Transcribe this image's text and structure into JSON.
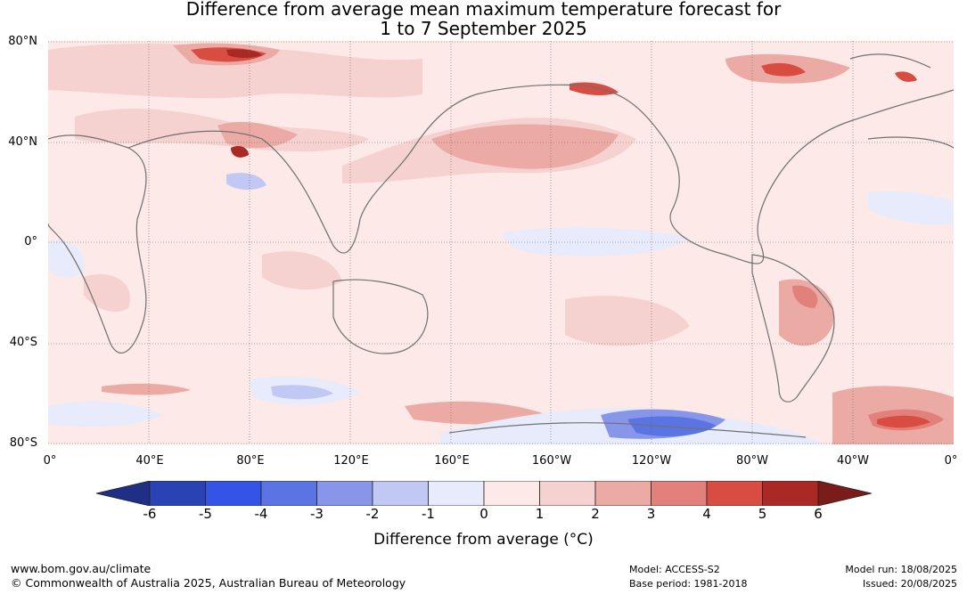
{
  "title_line1": "Difference from average mean maximum temperature forecast for",
  "title_line2": "1 to 7 September 2025",
  "lat_labels": [
    "80°N",
    "40°N",
    "0°",
    "40°S",
    "80°S"
  ],
  "lon_labels": [
    "0°",
    "40°E",
    "80°E",
    "120°E",
    "160°E",
    "160°W",
    "120°W",
    "80°W",
    "40°W",
    "0°"
  ],
  "colorbar": {
    "ticks": [
      "-6",
      "-5",
      "-4",
      "-3",
      "-2",
      "-1",
      "0",
      "1",
      "2",
      "3",
      "4",
      "5",
      "6"
    ],
    "label": "Difference from average (°C)",
    "colors": [
      "#1f2f86",
      "#2a43b4",
      "#3354e6",
      "#5a75e3",
      "#8896ea",
      "#c2c8f4",
      "#e8ebfb",
      "#fce9e8",
      "#f5d2cf",
      "#ecaaa5",
      "#e2817b",
      "#d84c42",
      "#ab2924",
      "#7a1c1a"
    ]
  },
  "footer": {
    "url": "www.bom.gov.au/climate",
    "copyright": "© Commonwealth of Australia 2025, Australian Bureau of Meteorology",
    "model": "Model: ACCESS-S2",
    "base_period": "Base period: 1981-2018",
    "model_run": "Model run: 18/08/2025",
    "issued": "Issued: 20/08/2025"
  }
}
